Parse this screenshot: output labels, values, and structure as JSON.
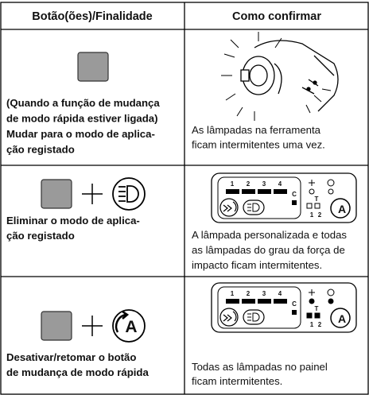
{
  "header": {
    "left": "Botão(ões)/Finalidade",
    "right": "Como confirmar"
  },
  "rows": [
    {
      "purpose": [
        "(Quando a função de mudança",
        "de modo rápida estiver ligada)",
        "Mudar para o modo de aplica-",
        "ção registado"
      ],
      "confirm": [
        "As lâmpadas na ferramenta",
        "ficam intermitentes uma vez."
      ]
    },
    {
      "purpose": [
        "Eliminar o modo de aplica-",
        "ção registado"
      ],
      "confirm": [
        "A lâmpada personalizada e todas",
        "as lâmpadas do grau da força de",
        "impacto ficam intermitentes."
      ]
    },
    {
      "purpose": [
        "Desativar/retomar o botão",
        "de mudança de modo rápida"
      ],
      "confirm": [
        "Todas as lâmpadas no painel",
        "ficam intermitentes."
      ]
    }
  ],
  "panel": {
    "numbers": [
      "1",
      "2",
      "3",
      "4"
    ],
    "c": "C",
    "t": "T",
    "t_numbers": [
      "1",
      "2"
    ],
    "a": "A"
  }
}
